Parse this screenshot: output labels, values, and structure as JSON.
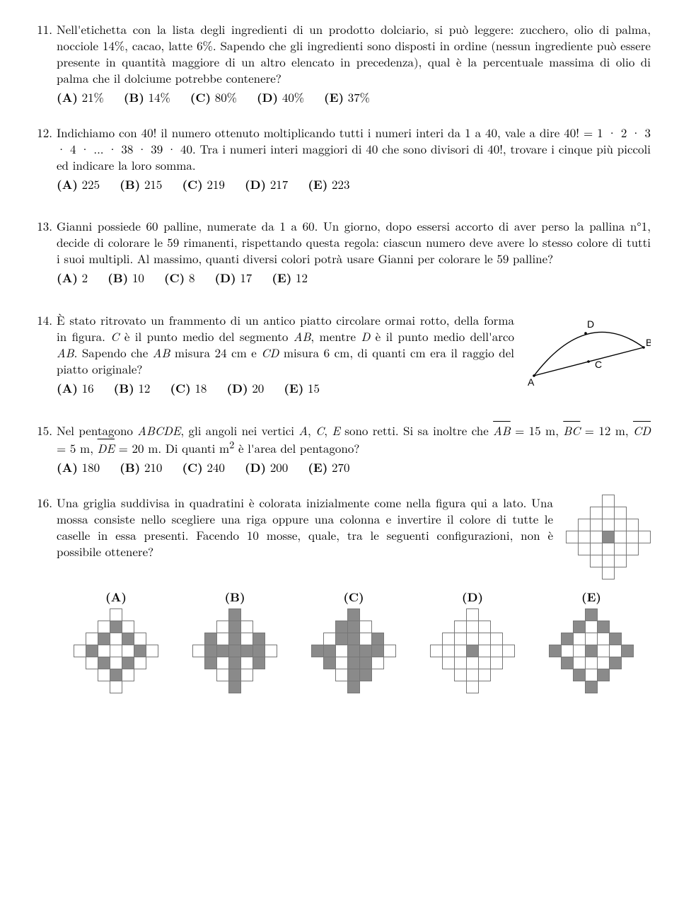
{
  "p11": {
    "num": "11.",
    "text1": "Nell'etichetta con la lista degli ingredienti di un prodotto dolciario, si può leggere: zucchero, olio di palma, nocciole 14%, cacao, latte 6%. Sapendo che gli ingredienti sono disposti in ordine (nessun ingrediente può essere presente in quantità maggiore di un altro elencato in precedenza), qual è la percentuale massima di olio di palma che il dolciume potrebbe contenere?",
    "opts": {
      "A": "21%",
      "B": "14%",
      "C": "80%",
      "D": "40%",
      "E": "37%"
    }
  },
  "p12": {
    "num": "12.",
    "text1": "Indichiamo con 40! il numero ottenuto moltiplicando tutti i numeri interi da 1 a 40, vale a dire 40! = 1 · 2 · 3 · 4 · ... · 38 · 39 · 40. Tra i numeri interi maggiori di 40 che sono divisori di 40!, trovare i cinque più piccoli ed indicare la loro somma.",
    "opts": {
      "A": "225",
      "B": "215",
      "C": "219",
      "D": "217",
      "E": "223"
    }
  },
  "p13": {
    "num": "13.",
    "text1": "Gianni possiede 60 palline, numerate da 1 a 60. Un giorno, dopo essersi accorto di aver perso la pallina n°1, decide di colorare le 59 rimanenti, rispettando questa regola: ciascun numero deve avere lo stesso colore di tutti i suoi multipli. Al massimo, quanti diversi colori potrà usare Gianni per colorare le 59 palline?",
    "opts": {
      "A": "2",
      "B": "10",
      "C": "8",
      "D": "17",
      "E": "12"
    }
  },
  "p14": {
    "num": "14.",
    "text1_a": "È stato ritrovato un frammento di un antico piatto circolare ormai rotto, della forma in figura. ",
    "text1_b": " è il punto medio del segmento ",
    "text1_c": ", mentre ",
    "text1_d": " è il punto medio dell'arco ",
    "text1_e": ". Sapendo che ",
    "text1_f": " misura 24 cm e ",
    "text1_g": " misura 6 cm, di quanti cm era il raggio del piatto originale?",
    "var_C": "C",
    "var_AB": "AB",
    "var_D": "D",
    "var_CD": "CD",
    "fig_A": "A",
    "fig_B": "B",
    "fig_C": "C",
    "fig_D": "D",
    "opts": {
      "A": "16",
      "B": "12",
      "C": "18",
      "D": "20",
      "E": "15"
    }
  },
  "p15": {
    "num": "15.",
    "text1_a": "Nel pentagono ",
    "var_ABCDE": "ABCDE",
    "text1_b": ", gli angoli nei vertici ",
    "var_A": "A",
    "var_C": "C",
    "var_E": "E",
    "text1_c": " sono retti. Si sa inoltre che ",
    "seg_AB": "AB",
    "eq1": " = 15 m, ",
    "seg_BC": "BC",
    "eq2": " = 12 m, ",
    "seg_CD": "CD",
    "eq3": " = 5 m, ",
    "seg_DE": "DE",
    "eq4": " = 20 m. Di quanti m",
    "sup2": "2",
    "text1_d": " è l'area del pentagono?",
    "opts": {
      "A": "180",
      "B": "210",
      "C": "240",
      "D": "200",
      "E": "270"
    }
  },
  "p16": {
    "num": "16.",
    "text1": "Una griglia suddivisa in quadratini è colorata inizialmente come nella figura qui a lato. Una mossa consiste nello scegliere una riga oppure una colonna e invertire il colore di tutte le caselle in essa presenti. Facendo 10 mosse, quale, tra le seguenti configurazioni, non è possibile ottenere?",
    "optlabels": {
      "A": "(A)",
      "B": "(B)",
      "C": "(C)",
      "D": "(D)",
      "E": "(E)"
    },
    "grids": {
      "init": [
        "eeeweee",
        "eewwwee",
        "ewwwwwe",
        "wwwdwww",
        "ewwwwwe",
        "eewwwee",
        "eeeweee"
      ],
      "A": [
        "eeeweee",
        "eewdwee",
        "ewdwdwe",
        "wdwwwdw",
        "ewdwdwe",
        "eewdwee",
        "eeeweee"
      ],
      "B": [
        "eeedeee",
        "eewdwee",
        "edwdwde",
        "wdddddw",
        "edwdwde",
        "eewdwee",
        "eeedeee"
      ],
      "C": [
        "eeedeee",
        "eeddwee",
        "ewddwde",
        "ddwdddw",
        "edwddwe",
        "eewddee",
        "eeedeee"
      ],
      "D": [
        "eeeweee",
        "eewwwee",
        "ewwwwwe",
        "wwwdwww",
        "ewwwwwe",
        "eewwwee",
        "eeeweee"
      ],
      "E": [
        "eeedeee",
        "eedwdee",
        "edwwwde",
        "dwwdwwd",
        "edwwwde",
        "eedwdee",
        "eeedeee"
      ]
    }
  },
  "labels": {
    "A": "(A)",
    "B": "(B)",
    "C": "(C)",
    "D": "(D)",
    "E": "(E)"
  }
}
